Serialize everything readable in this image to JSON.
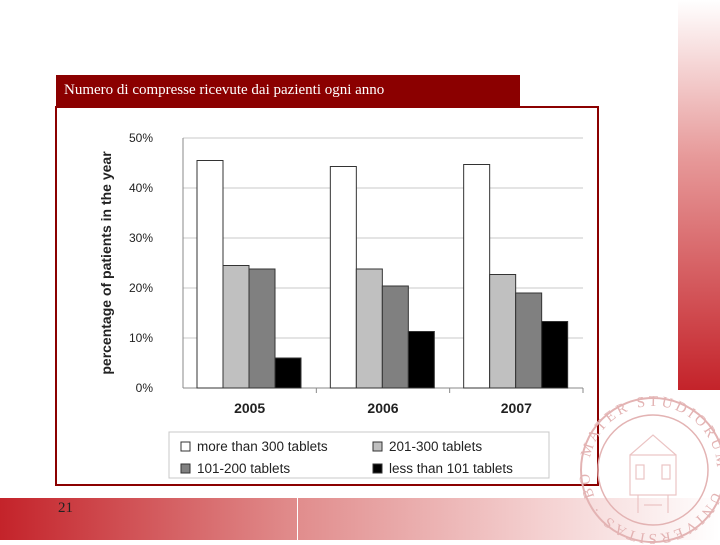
{
  "slide": {
    "title": "Numero di compresse ricevute dai pazienti ogni anno",
    "page_number": "21",
    "accent_color": "#8b0000",
    "band_color": "#c4232a"
  },
  "seal": {
    "text": "MATER STUDIORUM · UNIVERSITAS · BONONIENSIS"
  },
  "chart_data": {
    "type": "bar",
    "categories": [
      "2005",
      "2006",
      "2007"
    ],
    "series": [
      {
        "name": "more than 300 tablets",
        "values": [
          45.5,
          44.3,
          44.7
        ],
        "color": "#ffffff"
      },
      {
        "name": "201-300 tablets",
        "values": [
          24.5,
          23.8,
          22.7
        ],
        "color": "#c0c0c0"
      },
      {
        "name": "101-200 tablets",
        "values": [
          23.8,
          20.4,
          19.0
        ],
        "color": "#808080"
      },
      {
        "name": "less than 101 tablets",
        "values": [
          6.0,
          11.3,
          13.3
        ],
        "color": "#000000"
      }
    ],
    "ylabel": "percentage of patients in the year",
    "xlabel": "",
    "ylim": [
      0,
      50
    ],
    "yticks": [
      "0%",
      "10%",
      "20%",
      "30%",
      "40%",
      "50%"
    ],
    "grid": true,
    "legend_position": "bottom"
  }
}
